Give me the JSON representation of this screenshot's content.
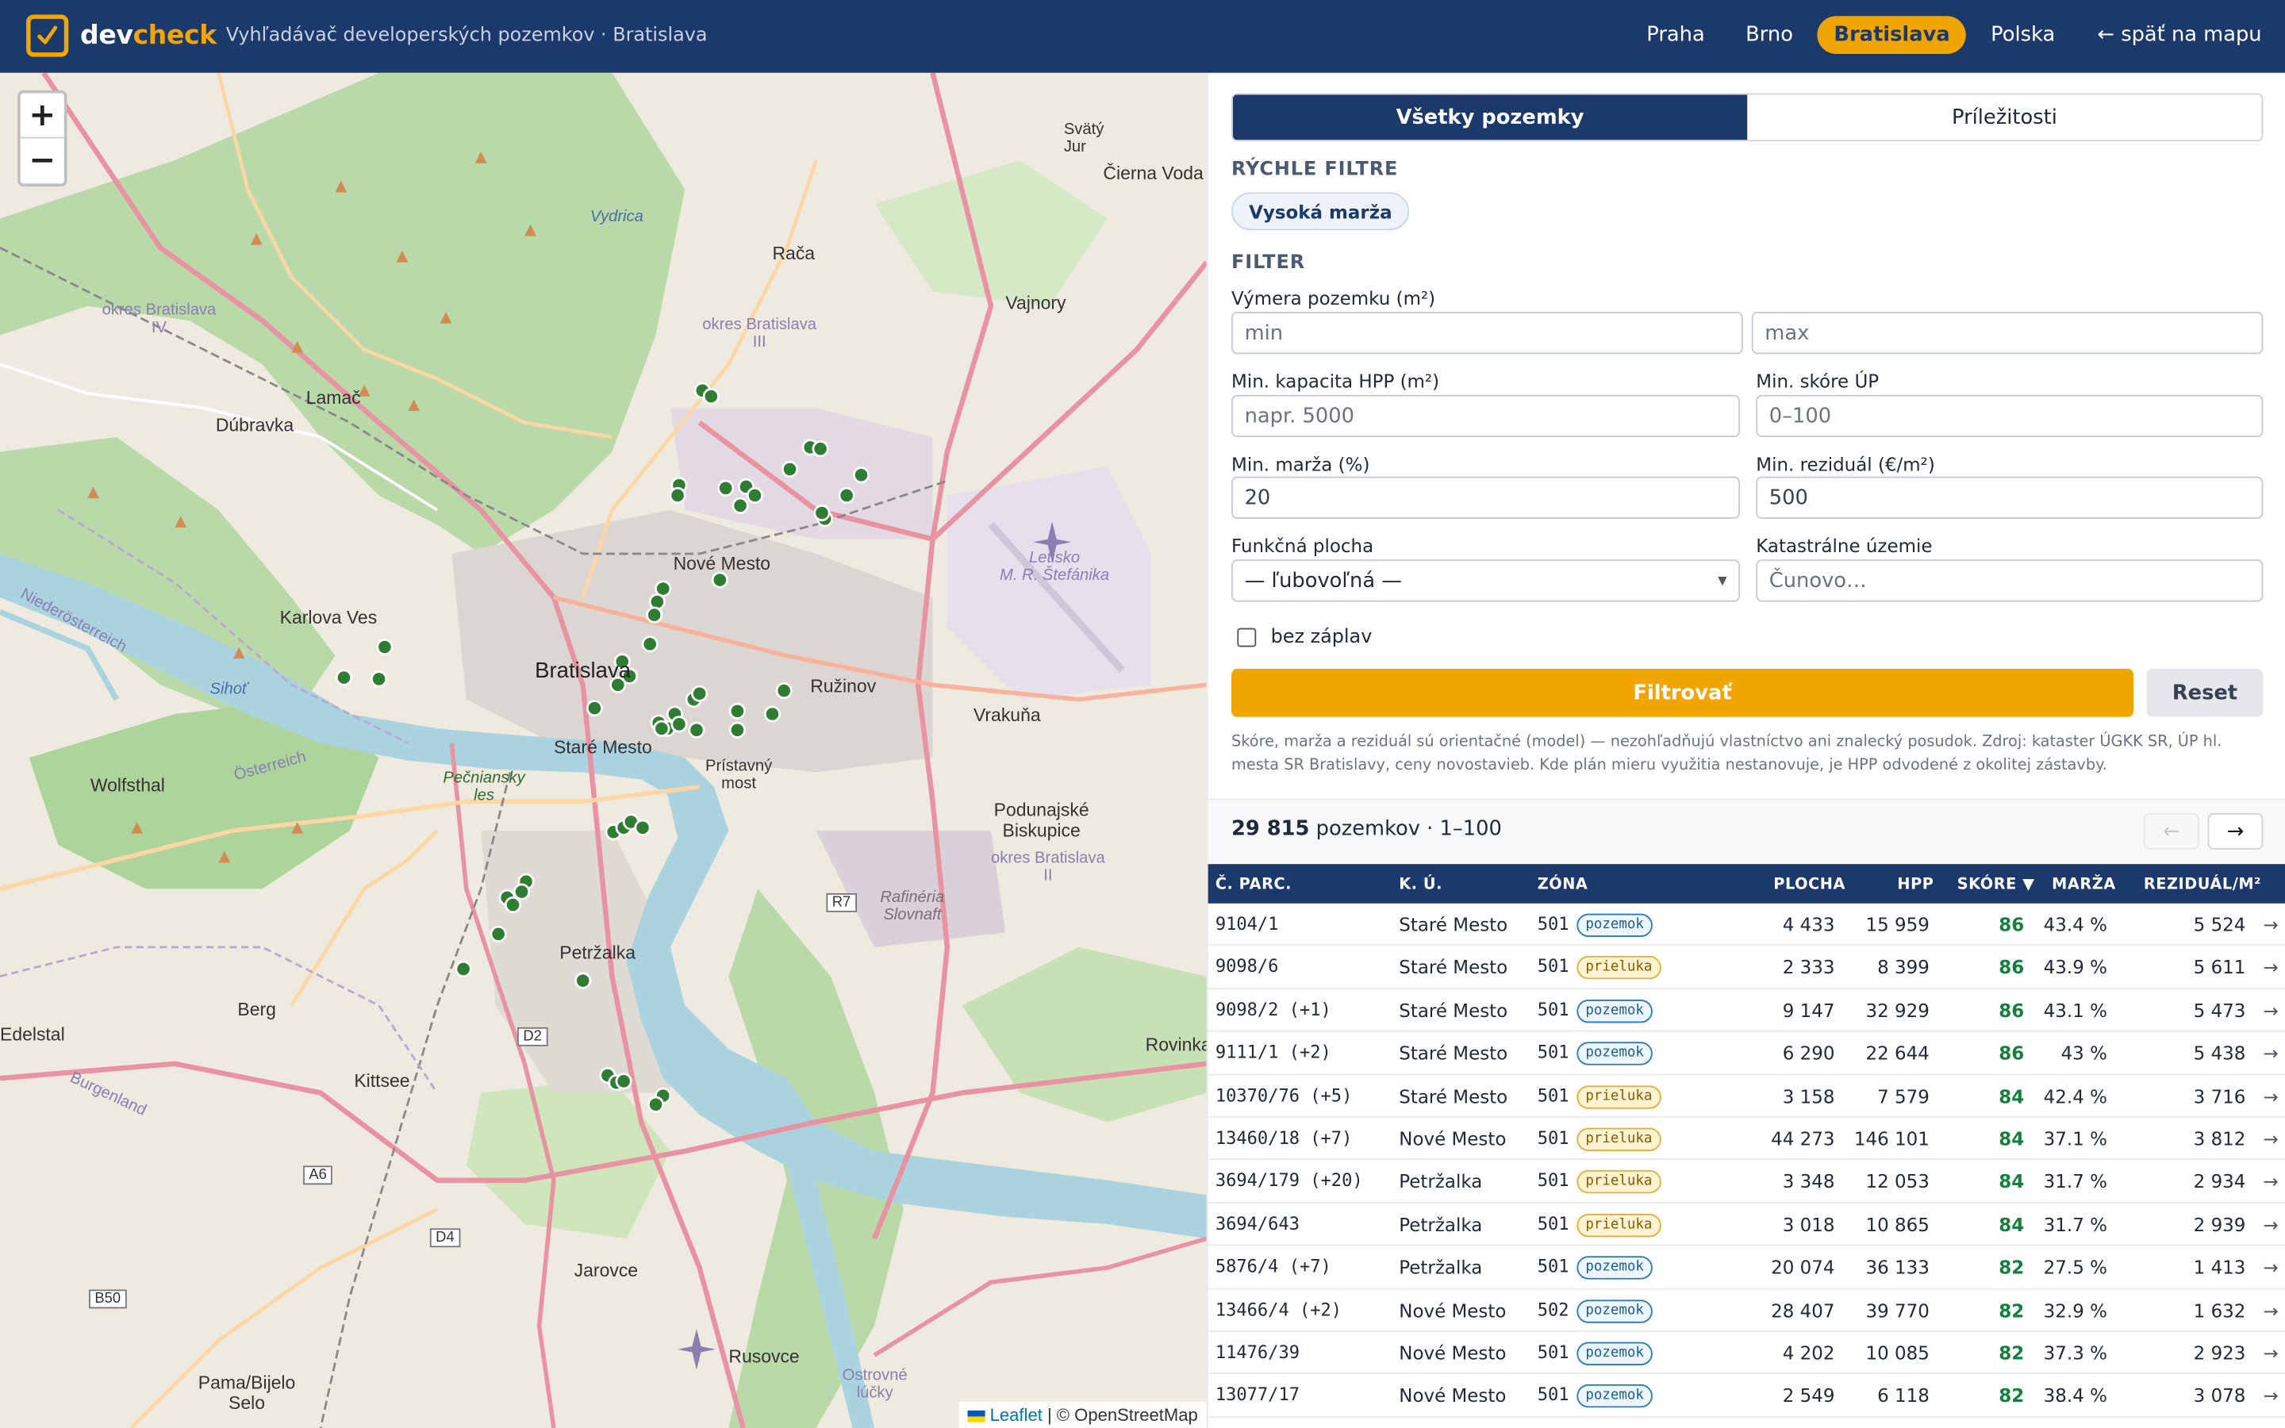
{
  "header": {
    "logo_dev": "dev",
    "logo_check": "check",
    "tagline": "Vyhľadávač developerských pozemkov · Bratislava",
    "nav": [
      {
        "label": "Praha"
      },
      {
        "label": "Brno"
      },
      {
        "label": "Bratislava",
        "active": true
      },
      {
        "label": "Polska"
      }
    ],
    "back_label": "← späť na mapu"
  },
  "map": {
    "zoom_in": "+",
    "zoom_out": "−",
    "attribution_leaflet": "Leaflet",
    "attribution_rest": " | © OpenStreetMap",
    "labels": {
      "bratislava": "Bratislava",
      "nove_mesto": "Nové Mesto",
      "stare_mesto": "Staré Mesto",
      "ruzinov": "Ružinov",
      "petrzalka": "Petržalka",
      "karlova_ves": "Karlova Ves",
      "dubravka": "Dúbravka",
      "lamac": "Lamač",
      "raca": "Rača",
      "vajnory": "Vajnory",
      "vrakuna": "Vrakuňa",
      "podunajske": "Podunajské\nBiskupice",
      "jarovce": "Jarovce",
      "rusovce": "Rusovce",
      "kittsee": "Kittsee",
      "berg": "Berg",
      "wolfsthal": "Wolfsthal",
      "edelstal": "Edelstal",
      "pama": "Pama/Bijelo\nSelo",
      "rovinka": "Rovinka",
      "cierna_voda": "Čierna Voda",
      "svaty_jur": "Svätý\nJur",
      "vydrica": "Vydrica",
      "sihot": "Sihoť",
      "pecniansky": "Pečniansky\nles",
      "pristavny": "Prístavný\nmost",
      "letisko": "Letisko\nM. R. Štefánika",
      "rafineria": "Rafinéria\nSlovnaft",
      "okres4": "okres Bratislava\nIV",
      "okres3": "okres Bratislava\nIII",
      "okres2": "okres Bratislava\nII",
      "burgenland": "Burgenland",
      "niederosterreich": "Niederösterreich",
      "osterreich": "Österreich",
      "ostrovne": "Ostrovné\nlúčky",
      "r7": "R7",
      "d2": "D2",
      "d4": "D4",
      "a6": "A6",
      "b50": "B50"
    }
  },
  "panel": {
    "tabs": [
      {
        "label": "Všetky pozemky",
        "active": true
      },
      {
        "label": "Príležitosti",
        "active": false
      }
    ],
    "quick_filters_title": "RÝCHLE FILTRE",
    "quick_filter_chip": "Vysoká marža",
    "filter_title": "FILTER",
    "fields": {
      "area_label": "Výmera pozemku (m²)",
      "area_min_placeholder": "min",
      "area_max_placeholder": "max",
      "hpp_label": "Min. kapacita HPP (m²)",
      "hpp_placeholder": "napr. 5000",
      "score_label": "Min. skóre ÚP",
      "score_placeholder": "0–100",
      "margin_label": "Min. marža (%)",
      "margin_value": "20",
      "residual_label": "Min. reziduál (€/m²)",
      "residual_value": "500",
      "function_label": "Funkčná plocha",
      "function_value": "— ľubovoľná —",
      "cadastral_label": "Katastrálne územie",
      "cadastral_placeholder": "Čunovo…"
    },
    "checkbox_label": "bez záplav",
    "filter_button": "Filtrovať",
    "reset_button": "Reset",
    "disclaimer": "Skóre, marža a reziduál sú orientačné (model) — nezohľadňujú vlastníctvo ani znalecký posudok. Zdroj: kataster ÚGKK SR, ÚP hl. mesta SR Bratislavy, ceny novostavieb. Kde plán mieru využitia nestanovuje, je HPP odvodené z okolitej zástavby.",
    "results_count": "29 815",
    "results_suffix": " pozemkov · 1–100",
    "pager_prev": "←",
    "pager_next": "→"
  },
  "table": {
    "columns": [
      "Č. PARC.",
      "K. Ú.",
      "ZÓNA",
      "PLOCHA",
      "HPP",
      "SKÓRE ▼",
      "MARŽA",
      "REZIDUÁL/M²"
    ],
    "rows": [
      {
        "parc": "9104/1",
        "ku": "Staré Mesto",
        "zone": "501",
        "type": "pozemok",
        "area": "4 433",
        "hpp": "15 959",
        "score": "86",
        "margin": "43.4 %",
        "residual": "5 524",
        "arrow": "→"
      },
      {
        "parc": "9098/6",
        "ku": "Staré Mesto",
        "zone": "501",
        "type": "prieluka",
        "area": "2 333",
        "hpp": "8 399",
        "score": "86",
        "margin": "43.9 %",
        "residual": "5 611",
        "arrow": "→"
      },
      {
        "parc": "9098/2 (+1)",
        "ku": "Staré Mesto",
        "zone": "501",
        "type": "pozemok",
        "area": "9 147",
        "hpp": "32 929",
        "score": "86",
        "margin": "43.1 %",
        "residual": "5 473",
        "arrow": "→"
      },
      {
        "parc": "9111/1 (+2)",
        "ku": "Staré Mesto",
        "zone": "501",
        "type": "pozemok",
        "area": "6 290",
        "hpp": "22 644",
        "score": "86",
        "margin": "43 %",
        "residual": "5 438",
        "arrow": "→"
      },
      {
        "parc": "10370/76 (+5)",
        "ku": "Staré Mesto",
        "zone": "501",
        "type": "prieluka",
        "area": "3 158",
        "hpp": "7 579",
        "score": "84",
        "margin": "42.4 %",
        "residual": "3 716",
        "arrow": "→"
      },
      {
        "parc": "13460/18 (+7)",
        "ku": "Nové Mesto",
        "zone": "501",
        "type": "prieluka",
        "area": "44 273",
        "hpp": "146 101",
        "score": "84",
        "margin": "37.1 %",
        "residual": "3 812",
        "arrow": "→"
      },
      {
        "parc": "3694/179 (+20)",
        "ku": "Petržalka",
        "zone": "501",
        "type": "prieluka",
        "area": "3 348",
        "hpp": "12 053",
        "score": "84",
        "margin": "31.7 %",
        "residual": "2 934",
        "arrow": "→"
      },
      {
        "parc": "3694/643",
        "ku": "Petržalka",
        "zone": "501",
        "type": "prieluka",
        "area": "3 018",
        "hpp": "10 865",
        "score": "84",
        "margin": "31.7 %",
        "residual": "2 939",
        "arrow": "→"
      },
      {
        "parc": "5876/4 (+7)",
        "ku": "Petržalka",
        "zone": "501",
        "type": "pozemok",
        "area": "20 074",
        "hpp": "36 133",
        "score": "82",
        "margin": "27.5 %",
        "residual": "1 413",
        "arrow": "→"
      },
      {
        "parc": "13466/4 (+2)",
        "ku": "Nové Mesto",
        "zone": "502",
        "type": "pozemok",
        "area": "28 407",
        "hpp": "39 770",
        "score": "82",
        "margin": "32.9 %",
        "residual": "1 632",
        "arrow": "→"
      },
      {
        "parc": "11476/39",
        "ku": "Nové Mesto",
        "zone": "501",
        "type": "pozemok",
        "area": "4 202",
        "hpp": "10 085",
        "score": "82",
        "margin": "37.3 %",
        "residual": "2 923",
        "arrow": "→"
      },
      {
        "parc": "13077/17",
        "ku": "Nové Mesto",
        "zone": "501",
        "type": "pozemok",
        "area": "2 549",
        "hpp": "6 118",
        "score": "82",
        "margin": "38.4 %",
        "residual": "3 078",
        "arrow": "→"
      }
    ]
  }
}
